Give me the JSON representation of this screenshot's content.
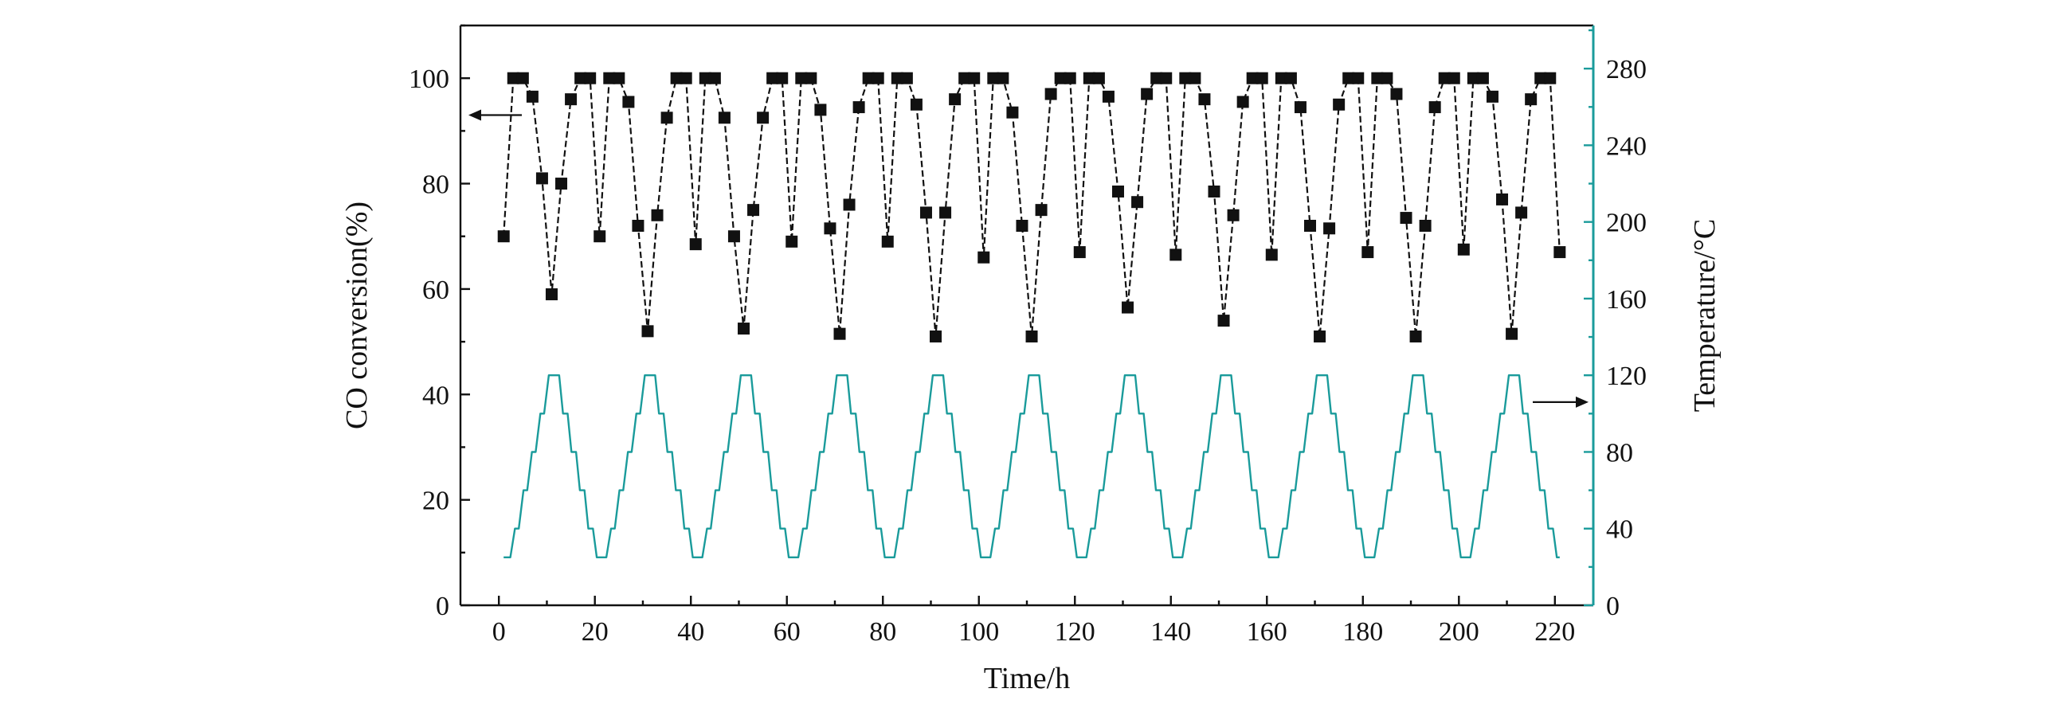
{
  "chart_data": {
    "type": "line",
    "title": "",
    "xlabel": "Time/h",
    "ylabel": "CO conversion(%)",
    "y2label": "Temperature/°C",
    "xlim": [
      -8,
      228
    ],
    "ylim": [
      0,
      110
    ],
    "y2lim": [
      0,
      302.5
    ],
    "xticks": [
      "0",
      "20",
      "40",
      "60",
      "80",
      "100",
      "120",
      "140",
      "160",
      "180",
      "200",
      "220"
    ],
    "yticks": [
      "0",
      "20",
      "40",
      "60",
      "80",
      "100"
    ],
    "y2ticks": [
      "0",
      "40",
      "80",
      "120",
      "160",
      "200",
      "240",
      "280"
    ],
    "grid": false,
    "colors": {
      "conversion": "#111111",
      "temperature": "#1a9b9b",
      "right_axis": "#1a9b9b"
    },
    "annotations": [
      {
        "text": "←",
        "points_to": "left axis (CO conversion)"
      },
      {
        "text": "→",
        "points_to": "right axis (Temperature)"
      }
    ],
    "series": [
      {
        "axis": "left",
        "marker": "square",
        "x": [
          1,
          3,
          5,
          7,
          9,
          11,
          13,
          15,
          17,
          19,
          21,
          23,
          25,
          27,
          29,
          31,
          33,
          35,
          37,
          39,
          41,
          43,
          45,
          47,
          49,
          51,
          53,
          55,
          57,
          59,
          61,
          63,
          65,
          67,
          69,
          71,
          73,
          75,
          77,
          79,
          81,
          83,
          85,
          87,
          89,
          91,
          93,
          95,
          97,
          99,
          101,
          103,
          105,
          107,
          109,
          111,
          113,
          115,
          117,
          119,
          121,
          123,
          125,
          127,
          129,
          131,
          133,
          135,
          137,
          139,
          141,
          143,
          145,
          147,
          149,
          151,
          153,
          155,
          157,
          159,
          161,
          163,
          165,
          167,
          169,
          171,
          173,
          175,
          177,
          179,
          181,
          183,
          185,
          187,
          189,
          191,
          193,
          195,
          197,
          199,
          201,
          203,
          205,
          207,
          209,
          211,
          213,
          215,
          217,
          219,
          221
        ],
        "values": [
          70,
          100,
          100,
          96.5,
          81,
          59,
          80,
          96,
          100,
          100,
          70,
          100,
          100,
          95.5,
          72,
          52,
          74,
          92.5,
          100,
          100,
          68.5,
          100,
          100,
          92.5,
          70,
          52.5,
          75,
          92.5,
          100,
          100,
          69,
          100,
          100,
          94,
          71.5,
          51.5,
          76,
          94.5,
          100,
          100,
          69,
          100,
          100,
          95,
          74.5,
          51,
          74.5,
          96,
          100,
          100,
          66,
          100,
          100,
          93.5,
          72,
          51,
          75,
          97,
          100,
          100,
          67,
          100,
          100,
          96.5,
          78.5,
          56.5,
          76.5,
          97,
          100,
          100,
          66.5,
          100,
          100,
          96,
          78.5,
          54,
          74,
          95.5,
          100,
          100,
          66.5,
          100,
          100,
          94.5,
          72,
          51,
          71.5,
          95,
          100,
          100,
          67,
          100,
          100,
          97,
          73.5,
          51,
          72,
          94.5,
          100,
          100,
          67.5,
          100,
          100,
          96.5,
          77,
          51.5,
          74.5,
          96,
          100,
          100,
          67
        ]
      },
      {
        "axis": "right",
        "marker": "none",
        "cycle_period": 20,
        "cycle_count": 11,
        "start": 1,
        "step_levels": [
          25,
          40,
          60,
          80,
          100,
          120
        ],
        "hold_hours": 1.2
      }
    ]
  }
}
